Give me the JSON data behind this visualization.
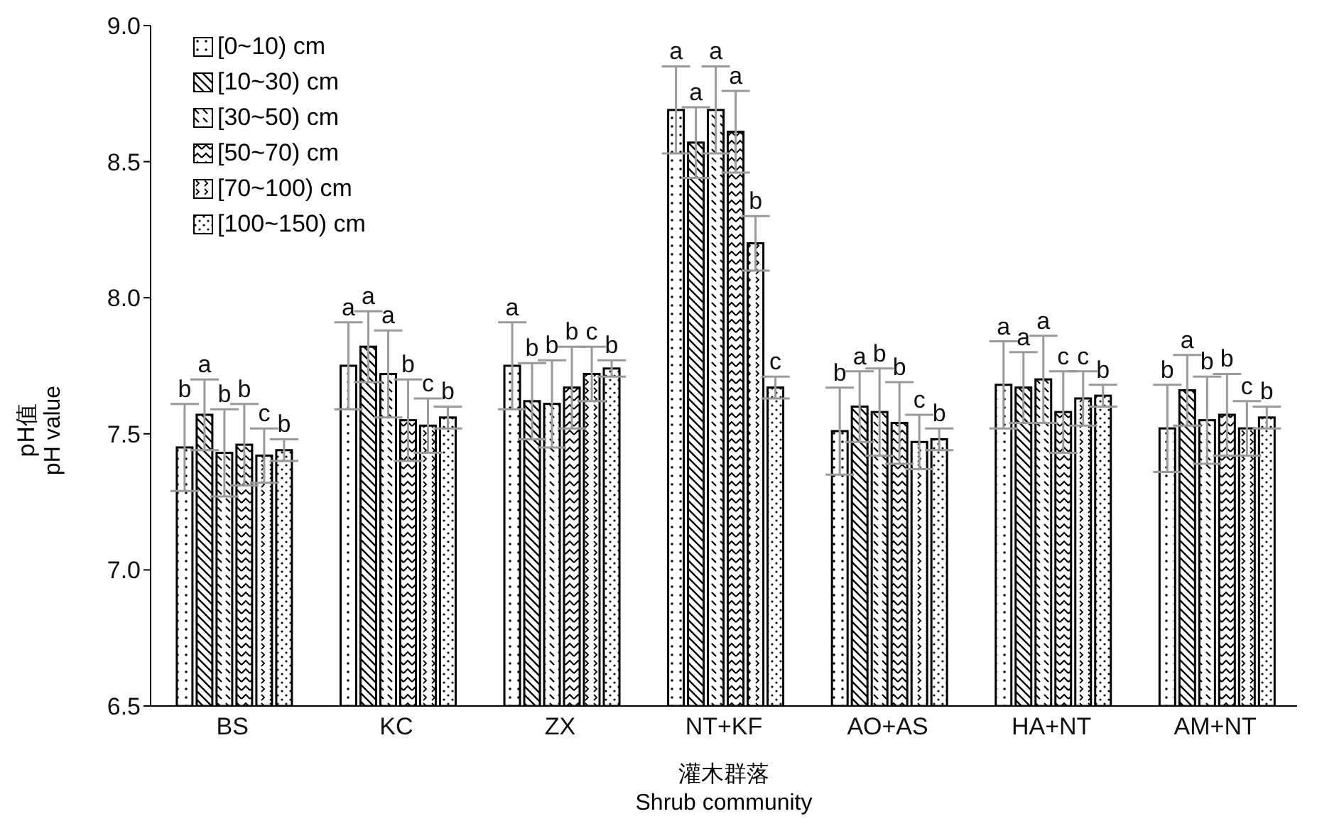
{
  "chart_data": {
    "type": "bar",
    "xlabel": "灌木群落\nShrub community",
    "ylabel": "pH值\npH value",
    "categories": [
      "BS",
      "KC",
      "ZX",
      "NT+KF",
      "AO+AS",
      "HA+NT",
      "AM+NT"
    ],
    "series": [
      {
        "name": "[0~10) cm",
        "color": "#ffffff",
        "values": [
          7.45,
          7.75,
          7.75,
          8.69,
          7.51,
          7.68,
          7.52
        ],
        "errors": [
          0.16,
          0.16,
          0.16,
          0.16,
          0.16,
          0.16,
          0.16
        ],
        "value_labels": [
          "b",
          "a",
          "a",
          "a",
          "b",
          "a",
          "b"
        ]
      },
      {
        "name": "[10~30) cm",
        "color": "#ffffff",
        "values": [
          7.57,
          7.82,
          7.62,
          8.57,
          7.6,
          7.67,
          7.66
        ],
        "errors": [
          0.13,
          0.13,
          0.14,
          0.13,
          0.13,
          0.13,
          0.13
        ],
        "value_labels": [
          "a",
          "a",
          "b",
          "a",
          "a",
          "a",
          "a"
        ]
      },
      {
        "name": "[30~50) cm",
        "color": "#ffffff",
        "values": [
          7.43,
          7.72,
          7.61,
          8.69,
          7.58,
          7.7,
          7.55
        ],
        "errors": [
          0.16,
          0.16,
          0.16,
          0.16,
          0.16,
          0.16,
          0.16
        ],
        "value_labels": [
          "b",
          "a",
          "b",
          "a",
          "b",
          "a",
          "b"
        ]
      },
      {
        "name": "[50~70) cm",
        "color": "#ffffff",
        "values": [
          7.46,
          7.55,
          7.67,
          8.61,
          7.54,
          7.58,
          7.57
        ],
        "errors": [
          0.15,
          0.15,
          0.15,
          0.15,
          0.15,
          0.15,
          0.15
        ],
        "value_labels": [
          "b",
          "b",
          "b",
          "a",
          "b",
          "c",
          "b"
        ]
      },
      {
        "name": "[70~100) cm",
        "color": "#ffffff",
        "values": [
          7.42,
          7.53,
          7.72,
          8.2,
          7.47,
          7.63,
          7.52
        ],
        "errors": [
          0.1,
          0.1,
          0.1,
          0.1,
          0.1,
          0.1,
          0.1
        ],
        "value_labels": [
          "c",
          "c",
          "c",
          "b",
          "c",
          "c",
          "c"
        ]
      },
      {
        "name": "[100~150) cm",
        "color": "#ffffff",
        "values": [
          7.44,
          7.56,
          7.74,
          7.67,
          7.48,
          7.64,
          7.56
        ],
        "errors": [
          0.04,
          0.04,
          0.03,
          0.04,
          0.04,
          0.04,
          0.04
        ],
        "value_labels": [
          "b",
          "b",
          "b",
          "c",
          "b",
          "b",
          "b"
        ]
      }
    ],
    "ylim": [
      6.5,
      9.0
    ],
    "yticks": [
      {
        "value": 6.5,
        "label": "6.5"
      },
      {
        "value": 7,
        "label": "7.0"
      },
      {
        "value": 7.5,
        "label": "7.5"
      },
      {
        "value": 8,
        "label": "8.0"
      },
      {
        "value": 8.5,
        "label": "8.5"
      },
      {
        "value": 9,
        "label": "9.0"
      }
    ],
    "legend": "top left",
    "grid": false
  }
}
